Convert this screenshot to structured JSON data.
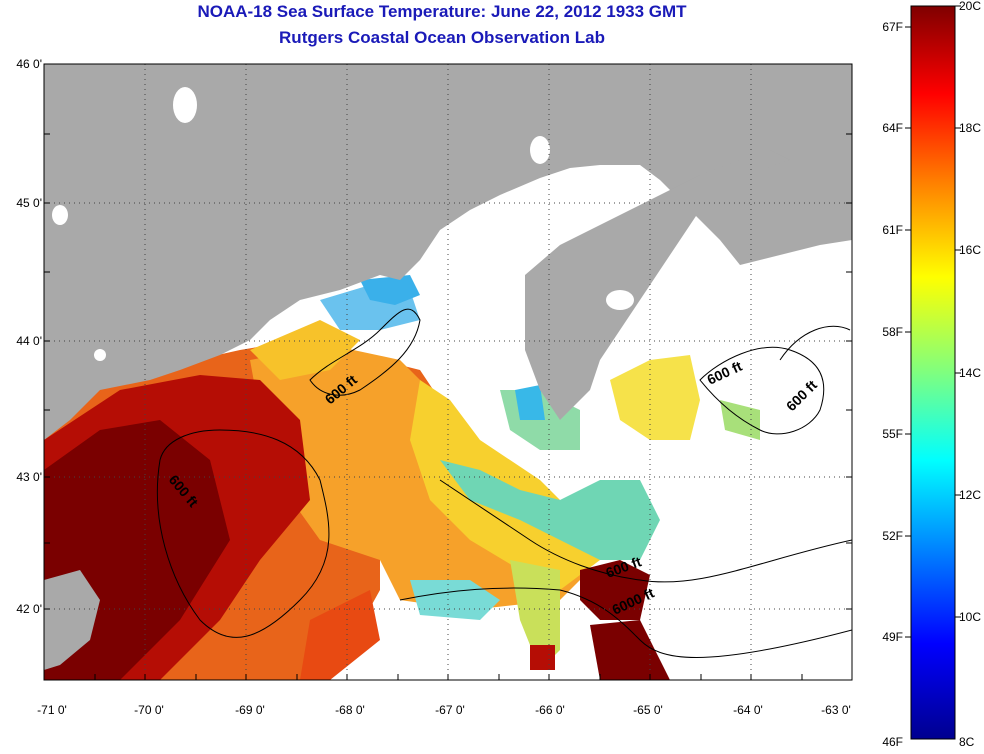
{
  "title_line1": "NOAA-18 Sea Surface Temperature:  June 22, 2012 1933 GMT",
  "title_line2": "Rutgers Coastal Ocean Observation Lab",
  "lat_ticks": [
    "46 0'",
    "45 0'",
    "44 0'",
    "43 0'",
    "42 0'"
  ],
  "lon_ticks": [
    "-71 0'",
    "-70 0'",
    "-69 0'",
    "-68 0'",
    "-67 0'",
    "-66 0'",
    "-65 0'",
    "-64 0'",
    "-63 0'"
  ],
  "colorbar": {
    "fahrenheit": [
      "67F",
      "64F",
      "61F",
      "58F",
      "55F",
      "52F",
      "49F",
      "46F"
    ],
    "celsius": [
      "20C",
      "18C",
      "16C",
      "14C",
      "12C",
      "10C",
      "8C"
    ]
  },
  "contour_labels": [
    "600 ft",
    "600 ft",
    "600 ft",
    "600 ft",
    "600 ft",
    "6000 ft"
  ],
  "colors": {
    "land": "#a9a9a9",
    "title": "#1a1ab8",
    "background": "#ffffff"
  }
}
